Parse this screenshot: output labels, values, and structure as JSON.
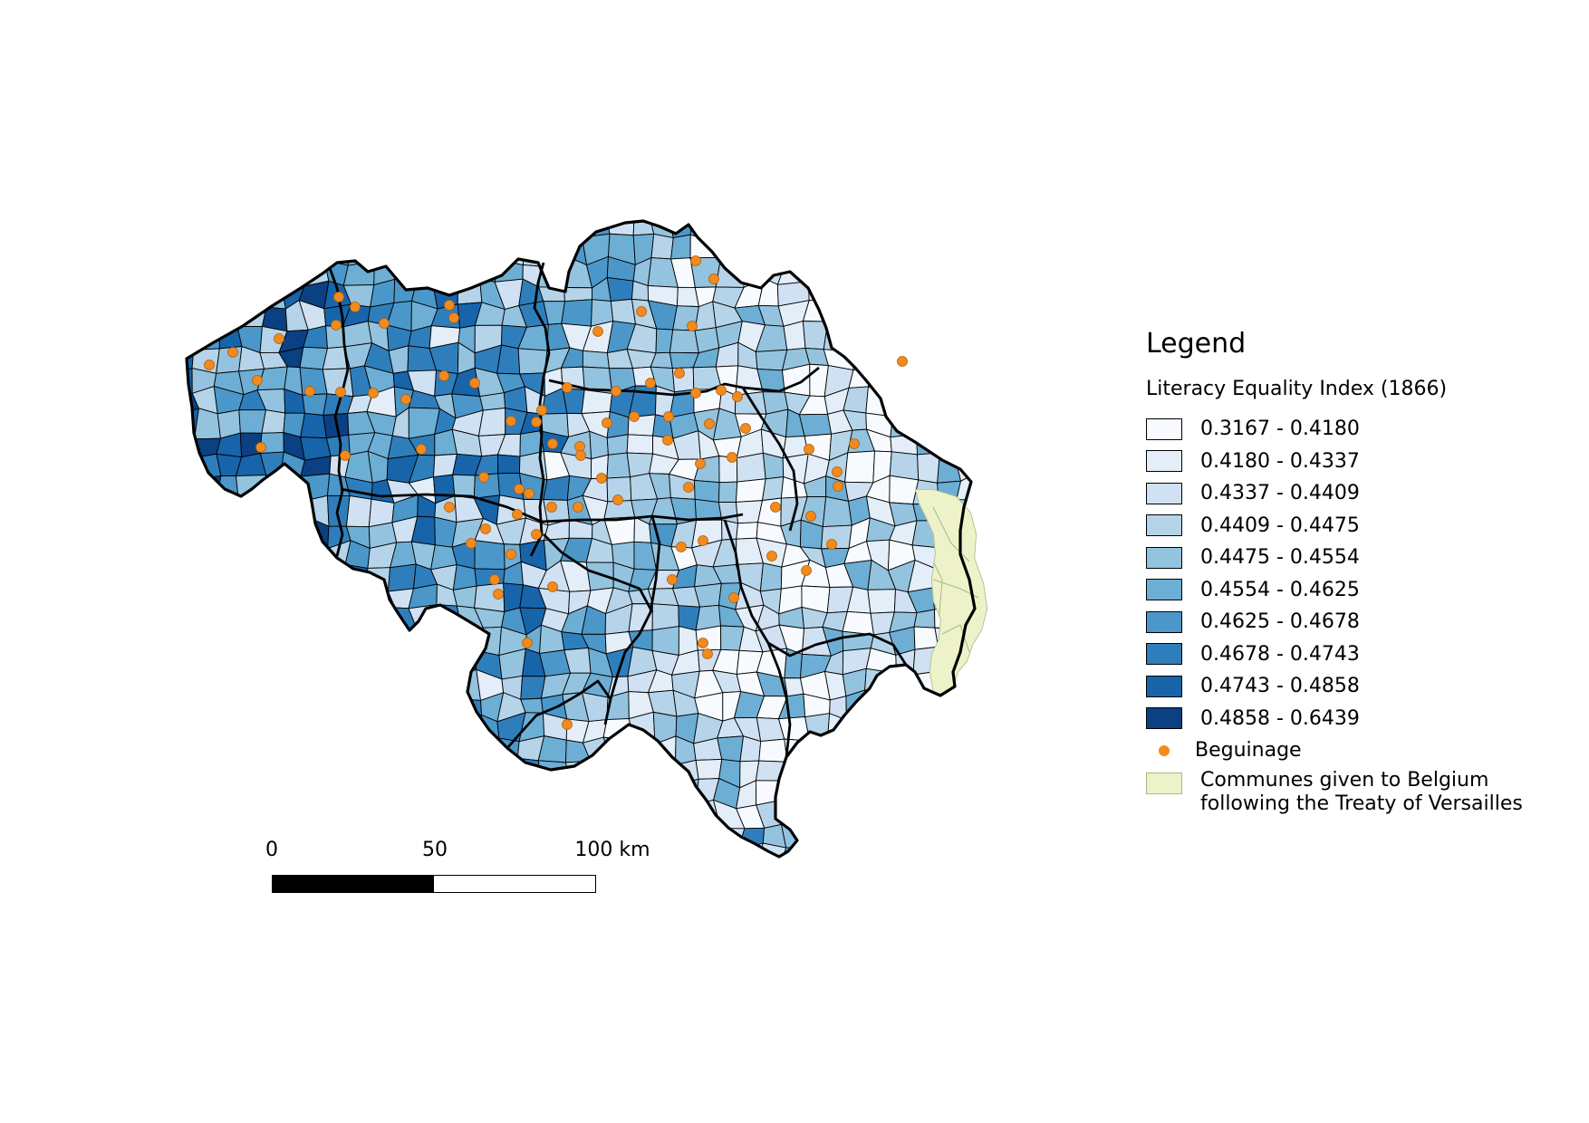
{
  "legend": {
    "title": "Legend",
    "subtitle": "Literacy Equality Index (1866)",
    "classes": [
      {
        "label": "0.3167 - 0.4180",
        "color": "#f7fbff"
      },
      {
        "label": "0.4180 - 0.4337",
        "color": "#e3eef9"
      },
      {
        "label": "0.4337 - 0.4409",
        "color": "#cfe1f2"
      },
      {
        "label": "0.4409 - 0.4475",
        "color": "#b5d4e9"
      },
      {
        "label": "0.4475 - 0.4554",
        "color": "#93c3df"
      },
      {
        "label": "0.4554 - 0.4625",
        "color": "#6daed5"
      },
      {
        "label": "0.4625 - 0.4678",
        "color": "#4b97c9"
      },
      {
        "label": "0.4678 - 0.4743",
        "color": "#2f7ebc"
      },
      {
        "label": "0.4743 - 0.4858",
        "color": "#1764ab"
      },
      {
        "label": "0.4858 - 0.6439",
        "color": "#0b4083"
      }
    ],
    "beguinage": {
      "label": "Beguinage",
      "color": "#f28a1e"
    },
    "treaty": {
      "line1": "Communes given to Belgium",
      "line2": "following the Treaty of Versailles",
      "color": "#eef2c9"
    }
  },
  "scale_bar": {
    "ticks": [
      "0",
      "50",
      "100 km"
    ]
  }
}
